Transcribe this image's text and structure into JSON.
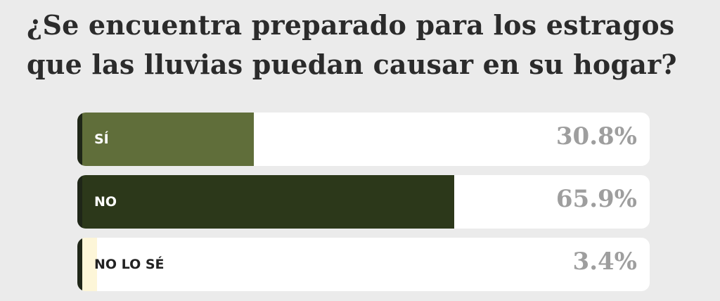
{
  "question": "¿Se encuentra preparado para los estragos que las lluvias puedan causar en su hogar?",
  "chart_data": {
    "type": "bar",
    "orientation": "horizontal",
    "categories": [
      "SÍ",
      "NO",
      "NO LO SÉ"
    ],
    "values": [
      30.8,
      65.9,
      3.4
    ],
    "value_labels": [
      "30.8%",
      "65.9%",
      "3.4%"
    ],
    "colors": [
      "#606e3a",
      "#2c381a",
      "#fdf6d8"
    ],
    "label_colors": [
      "#ffffff",
      "#ffffff",
      "#222222"
    ],
    "xlim": [
      0,
      100
    ]
  }
}
